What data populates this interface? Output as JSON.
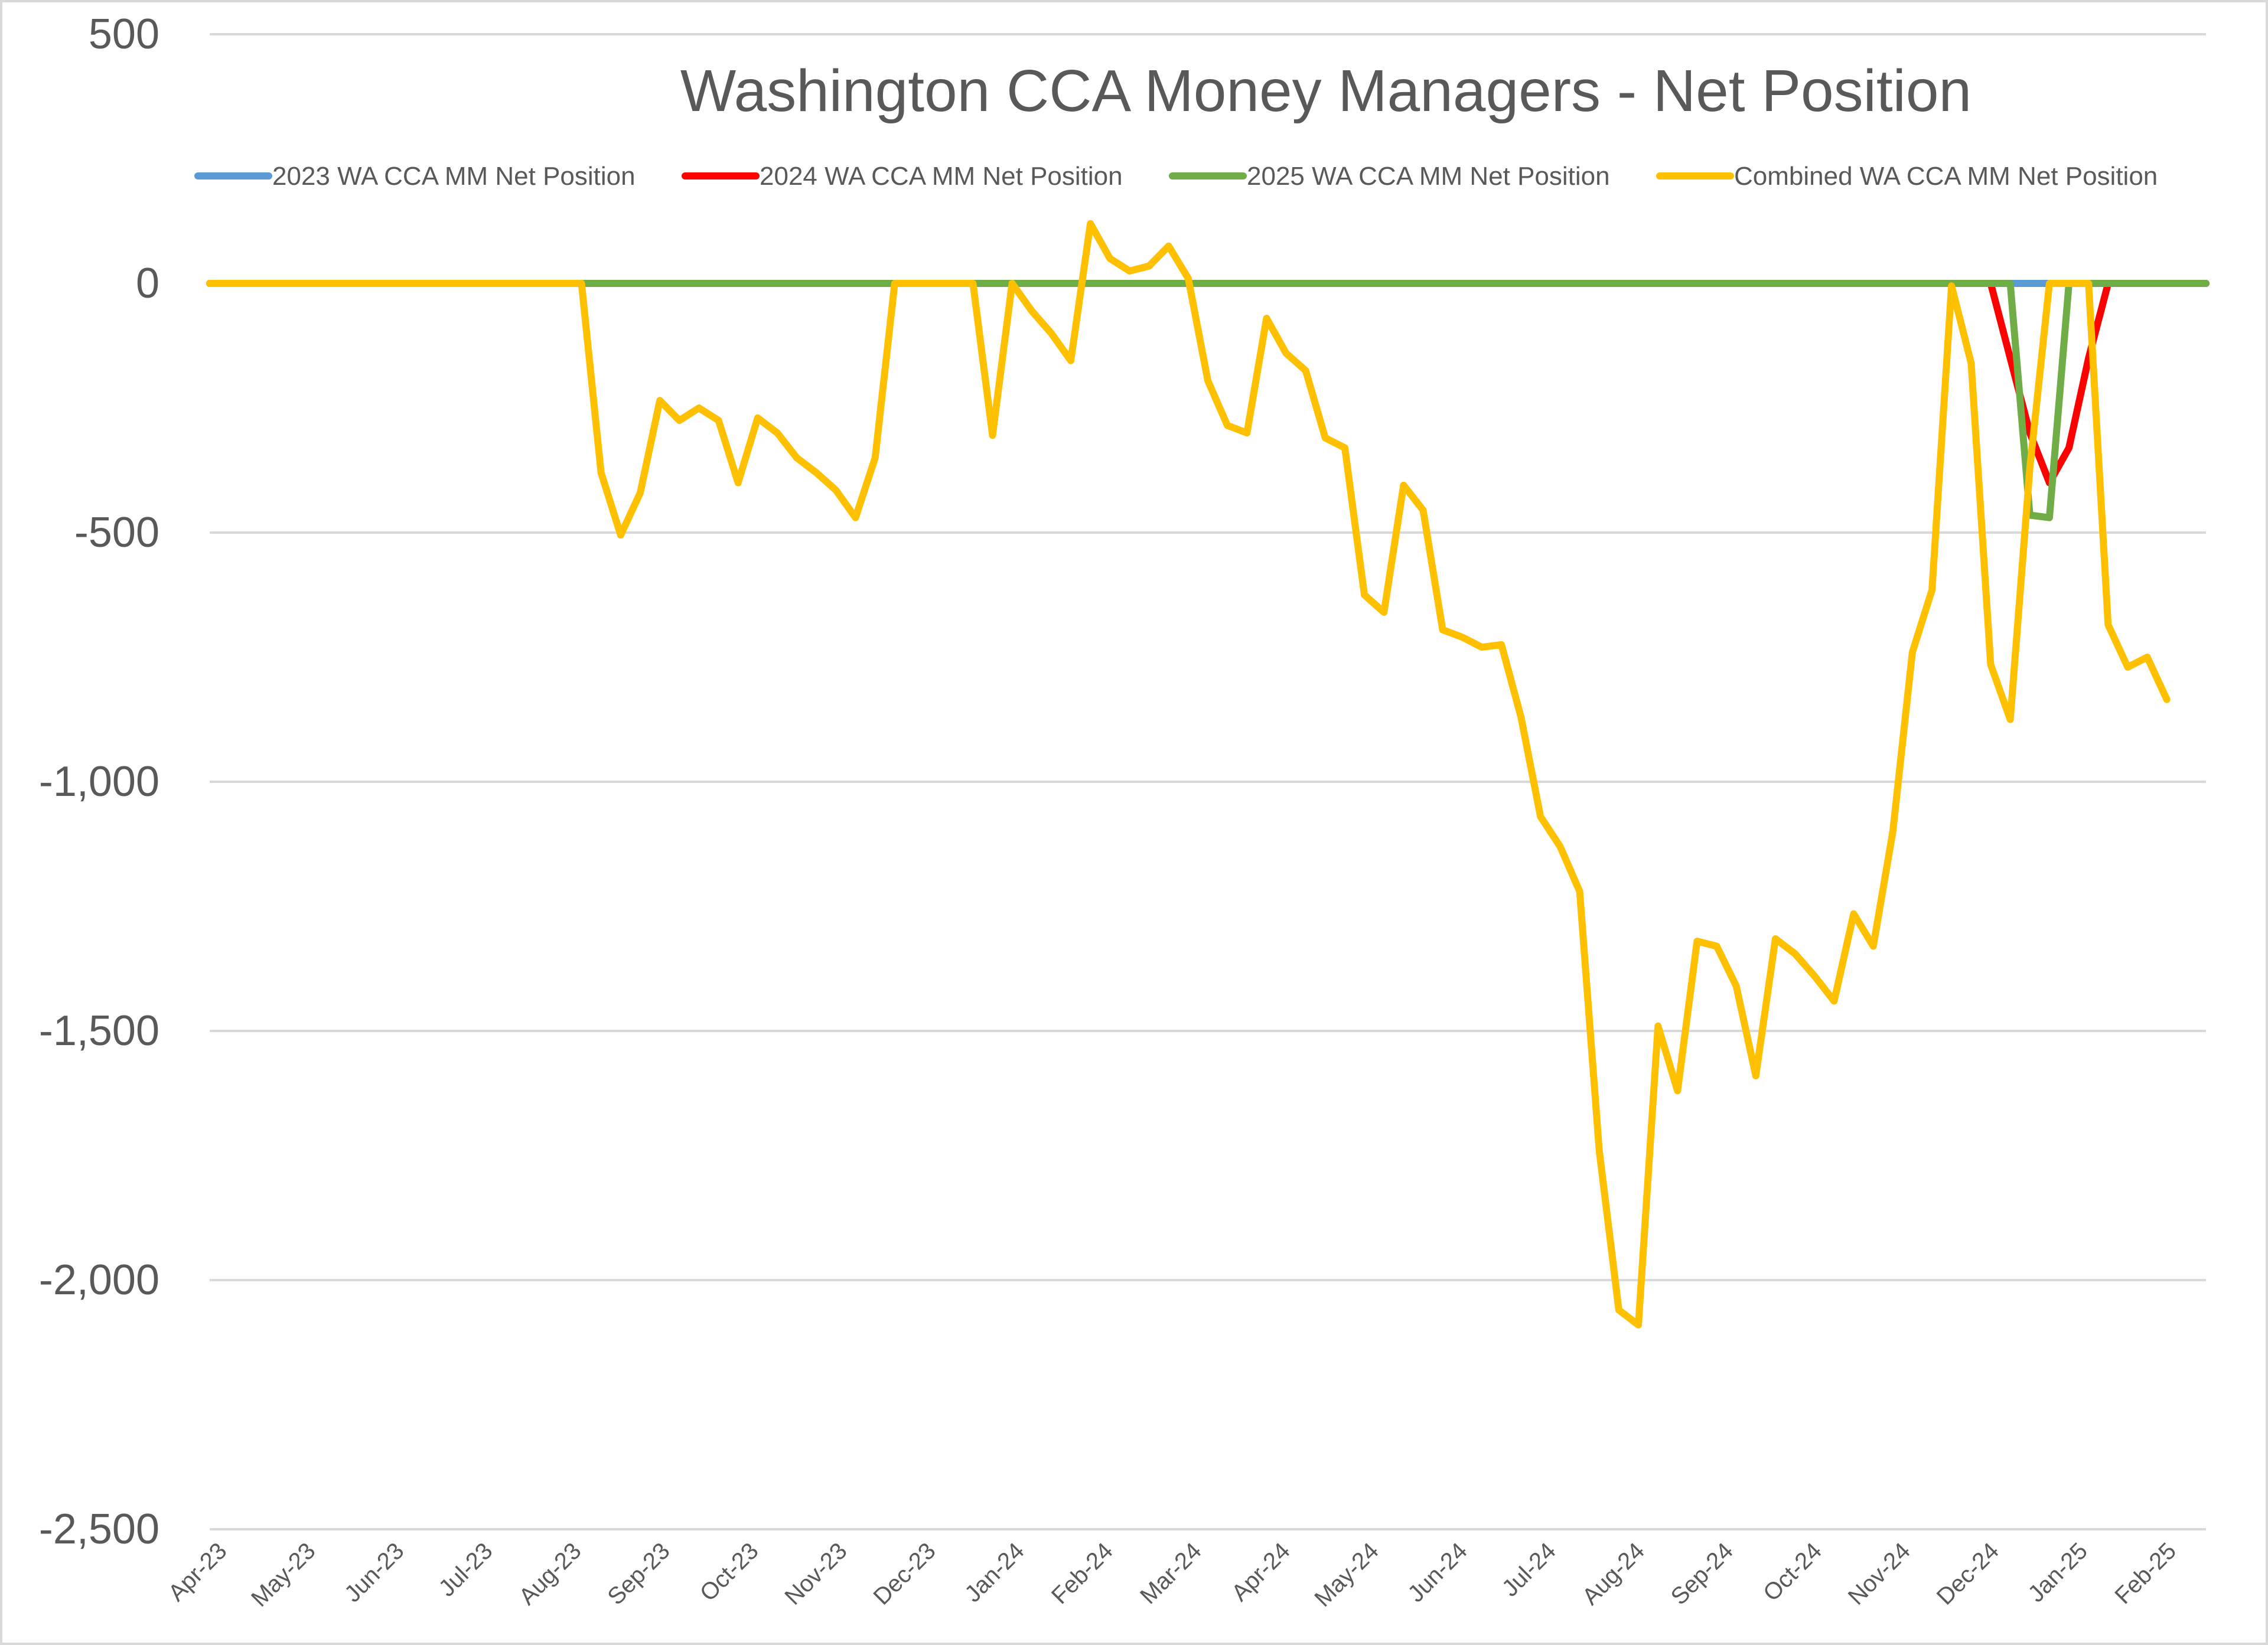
{
  "chart_data": {
    "type": "line",
    "title": "Washington CCA Money Managers - Net Position",
    "xlabel": "",
    "ylabel": "",
    "ylim": [
      -2500,
      500
    ],
    "yticks": [
      500,
      0,
      -500,
      -1000,
      -1500,
      -2000,
      -2500
    ],
    "ytick_labels": [
      "500",
      "0",
      "-500",
      "-1,000",
      "-1,500",
      "-2,000",
      "-2,500"
    ],
    "x_tick_labels": [
      "Apr-23",
      "May-23",
      "Jun-23",
      "Jul-23",
      "Aug-23",
      "Sep-23",
      "Oct-23",
      "Nov-23",
      "Dec-23",
      "Jan-24",
      "Feb-24",
      "Mar-24",
      "Apr-24",
      "May-24",
      "Jun-24",
      "Jul-24",
      "Aug-24",
      "Sep-24",
      "Oct-24",
      "Nov-24",
      "Dec-24",
      "Jan-25",
      "Feb-25"
    ],
    "legend_position": "top",
    "grid": "horizontal",
    "series": [
      {
        "name": "2023 WA CCA MM Net Position",
        "color": "#5b9bd5",
        "points": [
          [
            0,
            0
          ],
          [
            102,
            0
          ]
        ]
      },
      {
        "name": "2024 WA CCA MM Net Position",
        "color": "#ff0000",
        "points": [
          [
            0,
            0
          ],
          [
            91,
            0
          ],
          [
            92,
            -150
          ],
          [
            93,
            -300
          ],
          [
            94,
            -400
          ],
          [
            95,
            -330
          ],
          [
            96,
            -150
          ],
          [
            97,
            0
          ],
          [
            102,
            0
          ]
        ]
      },
      {
        "name": "2025 WA CCA MM Net Position",
        "color": "#70ad47",
        "points": [
          [
            0,
            0
          ],
          [
            92,
            0
          ],
          [
            93,
            -465
          ],
          [
            94,
            -470
          ],
          [
            95,
            0
          ],
          [
            102,
            0
          ]
        ]
      },
      {
        "name": "Combined WA CCA MM Net Position",
        "color": "#ffc000",
        "points": [
          [
            0,
            0
          ],
          [
            19,
            0
          ],
          [
            20,
            -380
          ],
          [
            21,
            -505
          ],
          [
            22,
            -420
          ],
          [
            23,
            -235
          ],
          [
            24,
            -275
          ],
          [
            25,
            -250
          ],
          [
            26,
            -275
          ],
          [
            27,
            -400
          ],
          [
            28,
            -270
          ],
          [
            29,
            -300
          ],
          [
            30,
            -350
          ],
          [
            31,
            -380
          ],
          [
            32,
            -415
          ],
          [
            33,
            -470
          ],
          [
            34,
            -350
          ],
          [
            35,
            0
          ],
          [
            39,
            0
          ],
          [
            40,
            -305
          ],
          [
            41,
            0
          ],
          [
            42,
            -55
          ],
          [
            43,
            -100
          ],
          [
            44,
            -155
          ],
          [
            45,
            120
          ],
          [
            46,
            50
          ],
          [
            47,
            25
          ],
          [
            48,
            35
          ],
          [
            49,
            75
          ],
          [
            50,
            10
          ],
          [
            51,
            -195
          ],
          [
            52,
            -285
          ],
          [
            53,
            -300
          ],
          [
            54,
            -70
          ],
          [
            55,
            -140
          ],
          [
            56,
            -175
          ],
          [
            57,
            -310
          ],
          [
            58,
            -330
          ],
          [
            59,
            -625
          ],
          [
            60,
            -660
          ],
          [
            61,
            -405
          ],
          [
            62,
            -455
          ],
          [
            63,
            -695
          ],
          [
            64,
            -710
          ],
          [
            65,
            -730
          ],
          [
            66,
            -725
          ],
          [
            67,
            -870
          ],
          [
            68,
            -1070
          ],
          [
            69,
            -1130
          ],
          [
            70,
            -1220
          ],
          [
            71,
            -1740
          ],
          [
            72,
            -2060
          ],
          [
            73,
            -2090
          ],
          [
            74,
            -1490
          ],
          [
            75,
            -1620
          ],
          [
            76,
            -1320
          ],
          [
            77,
            -1330
          ],
          [
            78,
            -1410
          ],
          [
            79,
            -1590
          ],
          [
            80,
            -1315
          ],
          [
            81,
            -1345
          ],
          [
            82,
            -1390
          ],
          [
            83,
            -1440
          ],
          [
            84,
            -1265
          ],
          [
            85,
            -1330
          ],
          [
            86,
            -1100
          ],
          [
            87,
            -740
          ],
          [
            88,
            -615
          ],
          [
            89,
            -5
          ],
          [
            90,
            -160
          ],
          [
            91,
            -765
          ],
          [
            92,
            -875
          ],
          [
            93,
            -370
          ],
          [
            94,
            0
          ],
          [
            96,
            0
          ],
          [
            97,
            -685
          ],
          [
            98,
            -770
          ],
          [
            99,
            -750
          ],
          [
            100,
            -835
          ]
        ]
      }
    ]
  }
}
